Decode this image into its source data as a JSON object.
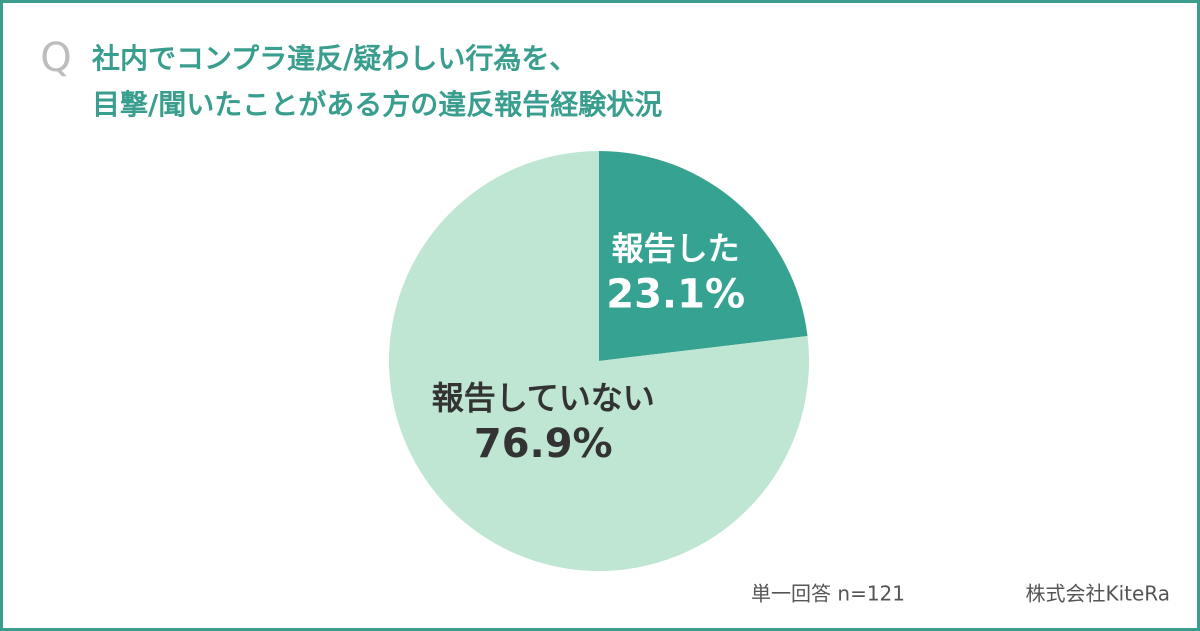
{
  "chart_data": {
    "type": "pie",
    "question_mark": "Q",
    "title_lines": [
      "社内でコンプラ違反/疑わしい行為を、",
      "目撃/聞いたことがある方の違反報告経験状況"
    ],
    "categories": [
      "報告した",
      "報告していない"
    ],
    "values": [
      23.1,
      76.9
    ],
    "value_labels": [
      "23.1%",
      "76.9%"
    ],
    "colors": [
      "#36a392",
      "#bfe5d3"
    ],
    "label_colors": [
      "#ffffff",
      "#333333"
    ],
    "note": "単一回答 n=121",
    "source": "株式会社KiteRa"
  }
}
